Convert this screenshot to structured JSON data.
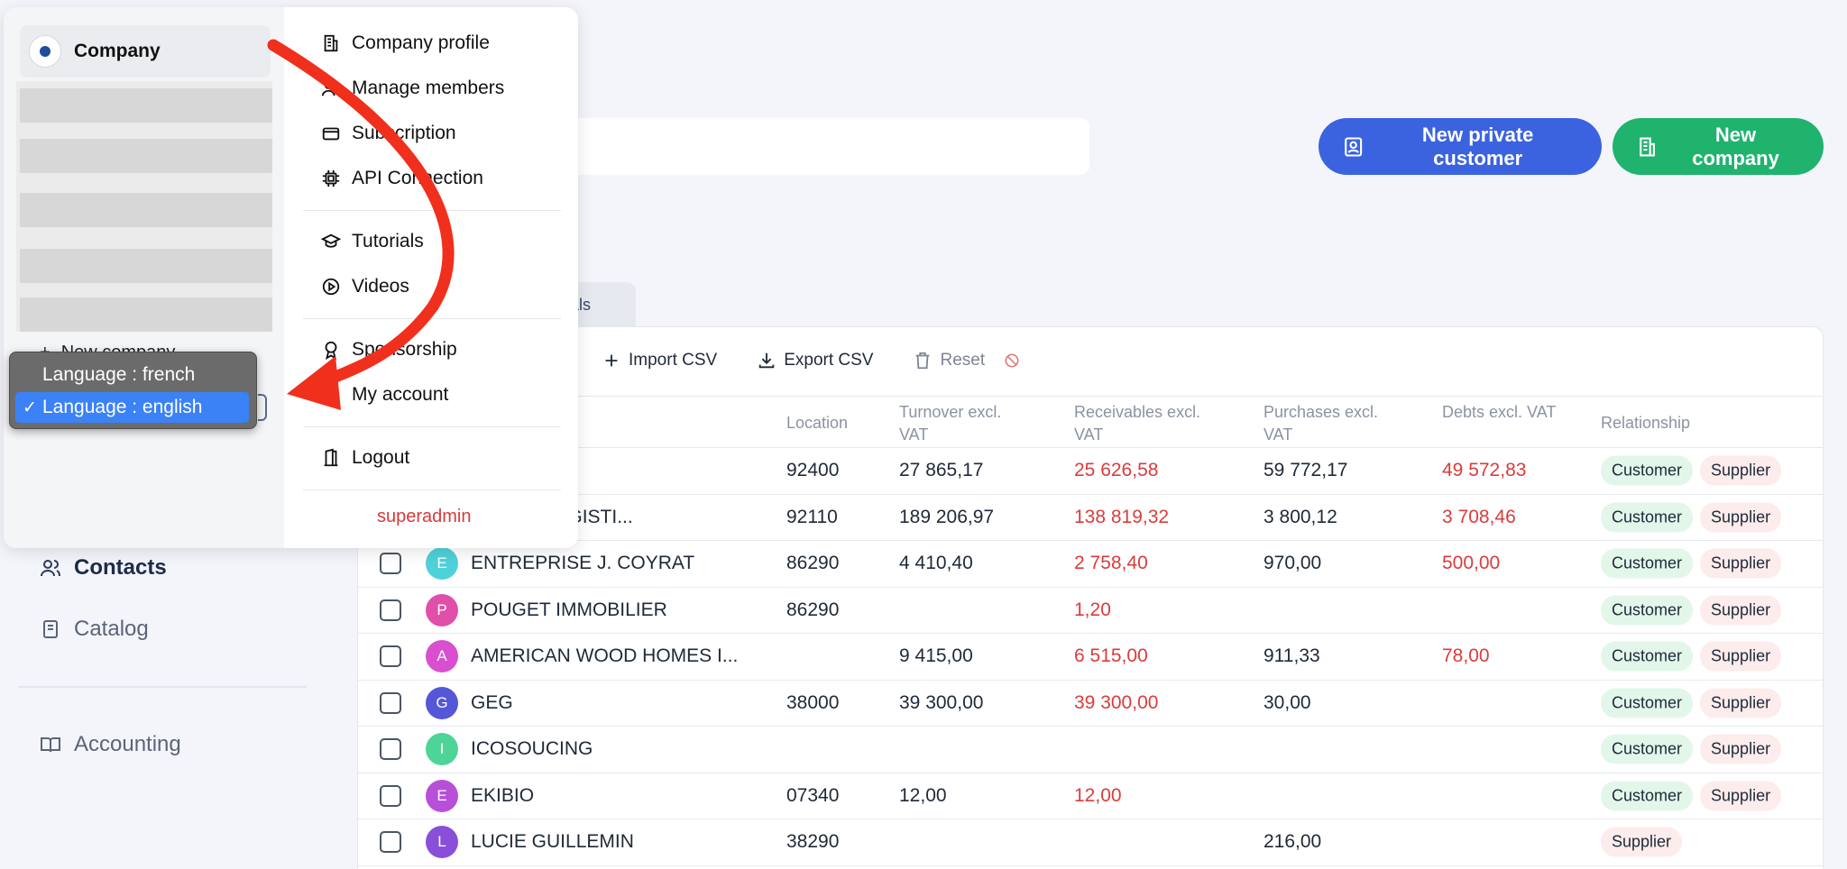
{
  "header": {
    "search_placeholder": "",
    "new_private_customer": "New private customer",
    "new_company": "New company"
  },
  "tabs": {
    "individuals_partial": "uals"
  },
  "sidebar_nav": {
    "contacts": "Contacts",
    "catalog": "Catalog",
    "accounting": "Accounting"
  },
  "toolbar": {
    "import_csv": "Import CSV",
    "export_csv": "Export CSV",
    "reset": "Reset"
  },
  "table": {
    "columns": {
      "location": "Location",
      "turnover": "Turnover excl. VAT",
      "receivables": "Receivables excl. VAT",
      "purchases": "Purchases excl. VAT",
      "debts": "Debts excl. VAT",
      "relationship": "Relationship"
    },
    "tag_customer": "Customer",
    "tag_supplier": "Supplier",
    "rows": [
      {
        "initial": "",
        "name": "",
        "location": "92400",
        "turnover": "27 865,17",
        "receivables": "25 626,58",
        "purchases": "59 772,17",
        "debts": "49 572,83",
        "customer": true,
        "supplier": true
      },
      {
        "initial": "",
        "name": "RANCE LOGISTI...",
        "location": "92110",
        "turnover": "189 206,97",
        "receivables": "138 819,32",
        "purchases": "3 800,12",
        "debts": "3 708,46",
        "customer": true,
        "supplier": true
      },
      {
        "initial": "E",
        "name": "ENTREPRISE J. COYRAT",
        "location": "86290",
        "turnover": "4 410,40",
        "receivables": "2 758,40",
        "purchases": "970,00",
        "debts": "500,00",
        "customer": true,
        "supplier": true,
        "color": "#4fd1d9"
      },
      {
        "initial": "P",
        "name": "POUGET IMMOBILIER",
        "location": "86290",
        "turnover": "",
        "receivables": "1,20",
        "purchases": "",
        "debts": "",
        "customer": true,
        "supplier": true,
        "color": "#e04fa8"
      },
      {
        "initial": "A",
        "name": "AMERICAN WOOD HOMES I...",
        "location": "",
        "turnover": "9 415,00",
        "receivables": "6 515,00",
        "purchases": "911,33",
        "debts": "78,00",
        "customer": true,
        "supplier": true,
        "color": "#d94fd0"
      },
      {
        "initial": "G",
        "name": "GEG",
        "location": "38000",
        "turnover": "39 300,00",
        "receivables": "39 300,00",
        "purchases": "30,00",
        "debts": "",
        "customer": true,
        "supplier": true,
        "color": "#5457d6"
      },
      {
        "initial": "I",
        "name": "ICOSOUCING",
        "location": "",
        "turnover": "",
        "receivables": "",
        "purchases": "",
        "debts": "",
        "customer": true,
        "supplier": true,
        "color": "#4fd497"
      },
      {
        "initial": "E",
        "name": "EKIBIO",
        "location": "07340",
        "turnover": "12,00",
        "receivables": "12,00",
        "purchases": "",
        "debts": "",
        "customer": true,
        "supplier": true,
        "color": "#b84fd9"
      },
      {
        "initial": "L",
        "name": "LUCIE GUILLEMIN",
        "location": "38290",
        "turnover": "",
        "receivables": "",
        "purchases": "216,00",
        "debts": "",
        "customer": false,
        "supplier": true,
        "color": "#8a4fd9"
      }
    ]
  },
  "menu": {
    "company_name": "Company",
    "new_company": "New company",
    "items": {
      "company_profile": "Company profile",
      "manage_members": "Manage members",
      "subscription": "Subscription",
      "api_connection": "API Connection",
      "tutorials": "Tutorials",
      "videos": "Videos",
      "sponsorship": "Sponsorship",
      "my_account": "My account",
      "logout": "Logout"
    },
    "role": "superadmin"
  },
  "language": {
    "options": [
      "Language : french",
      "Language : english"
    ],
    "selected": "Language : english",
    "check": "✓"
  },
  "colors": {
    "primary_blue": "#3b63e0",
    "primary_green": "#1fb36e",
    "negative_red": "#dc3b3b",
    "annotation_arrow": "#f0301c"
  }
}
